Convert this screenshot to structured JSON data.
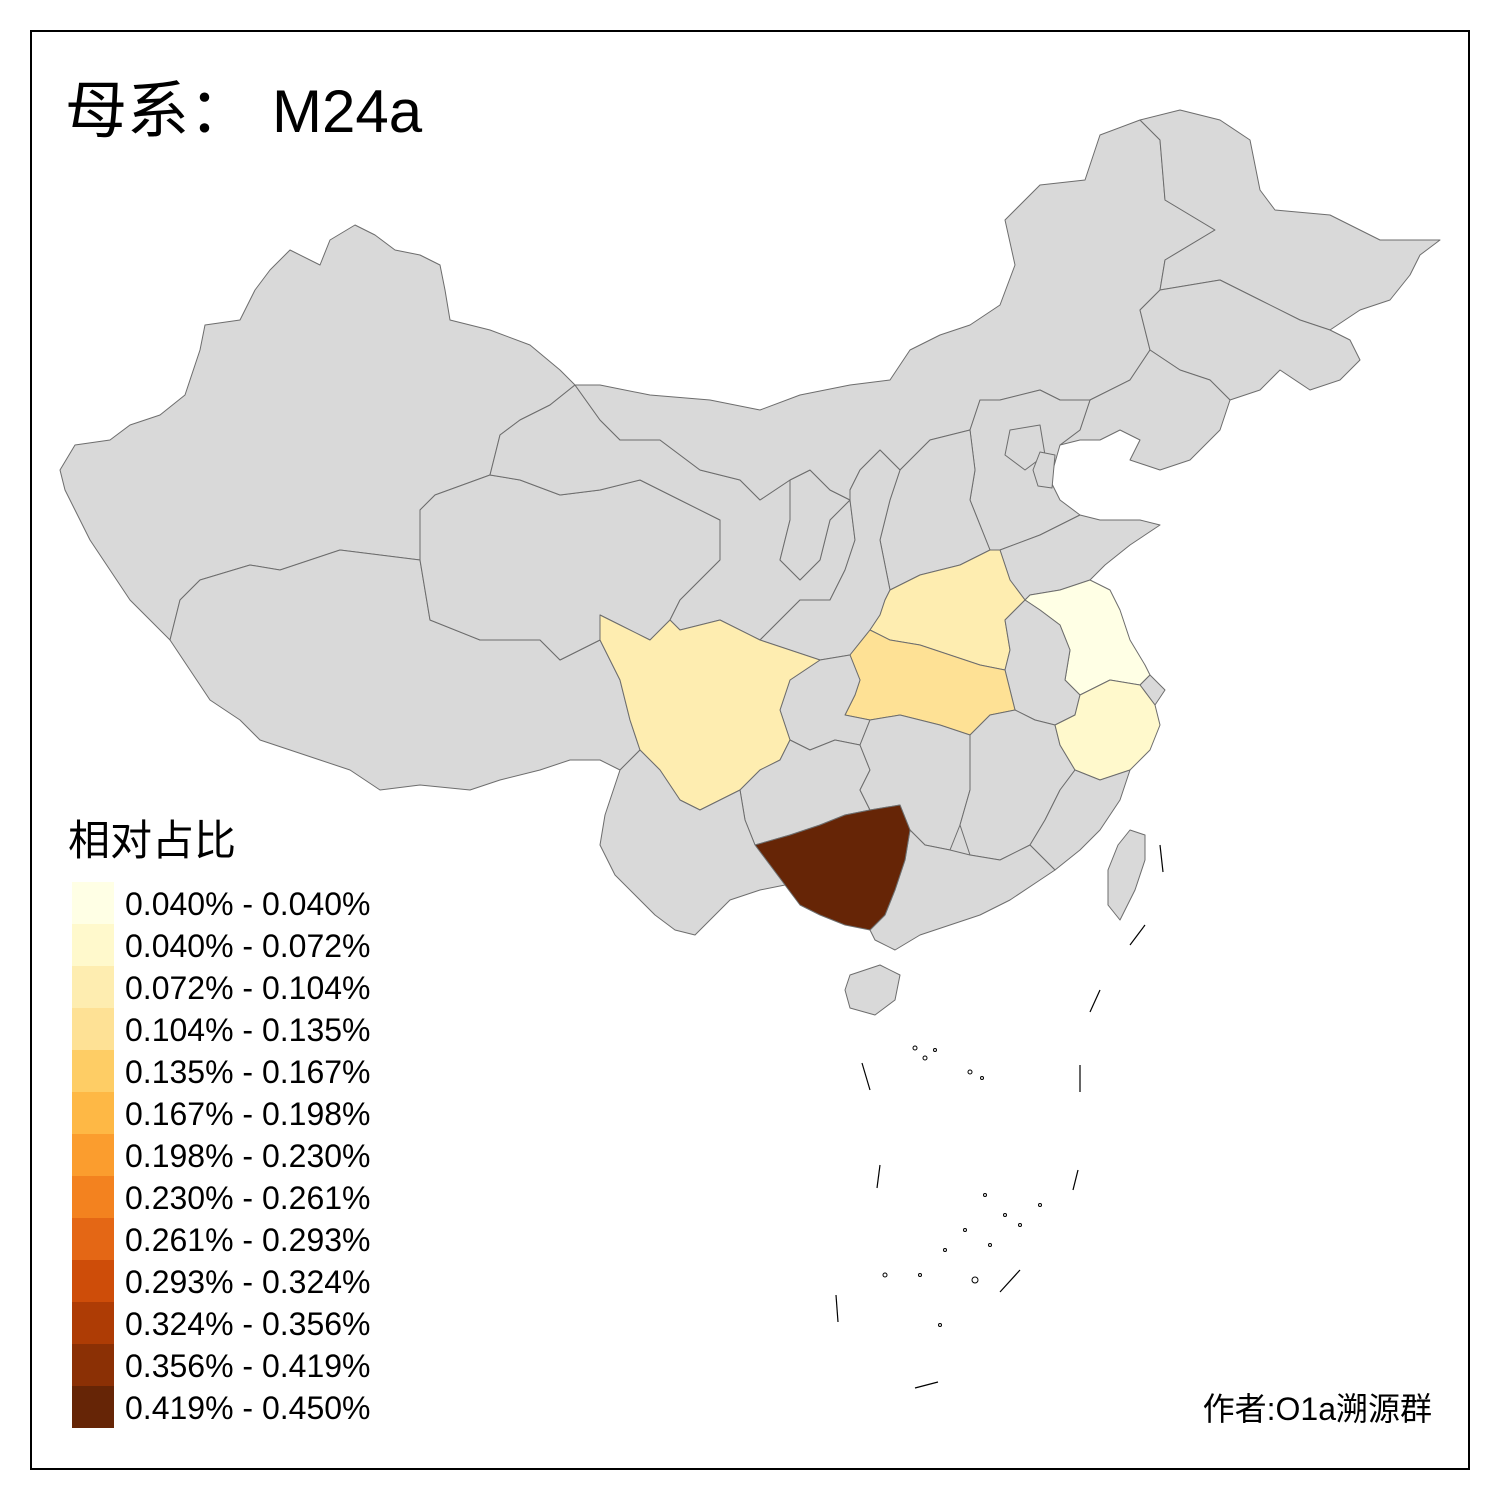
{
  "title": {
    "prefix": "母系：",
    "haplogroup": "M24a"
  },
  "legend": {
    "title": "相对占比",
    "bins": [
      {
        "label": "0.040% - 0.040%",
        "color": "#FFFFE5"
      },
      {
        "label": "0.040% - 0.072%",
        "color": "#FFF9CC"
      },
      {
        "label": "0.072% - 0.104%",
        "color": "#FEEDB0"
      },
      {
        "label": "0.104% - 0.135%",
        "color": "#FEE195"
      },
      {
        "label": "0.135% - 0.167%",
        "color": "#FECD65"
      },
      {
        "label": "0.167% - 0.198%",
        "color": "#FEB845"
      },
      {
        "label": "0.198% - 0.230%",
        "color": "#FB9D2E"
      },
      {
        "label": "0.230% - 0.261%",
        "color": "#F3821F"
      },
      {
        "label": "0.261% - 0.293%",
        "color": "#E46715"
      },
      {
        "label": "0.293% - 0.324%",
        "color": "#CE4D09"
      },
      {
        "label": "0.324% - 0.356%",
        "color": "#AE3C05"
      },
      {
        "label": "0.356% - 0.419%",
        "color": "#8B3005"
      },
      {
        "label": "0.419% - 0.450%",
        "color": "#662506"
      }
    ]
  },
  "map": {
    "no_data_color": "#D9D9D9",
    "border_color": "#6D6D6D",
    "region_bin": {
      "sichuan": 2,
      "henan": 2,
      "hubei": 3,
      "jiangsu": 0,
      "zhejiang": 1,
      "guangxi": 12
    }
  },
  "credit": "作者:O1a溯源群"
}
